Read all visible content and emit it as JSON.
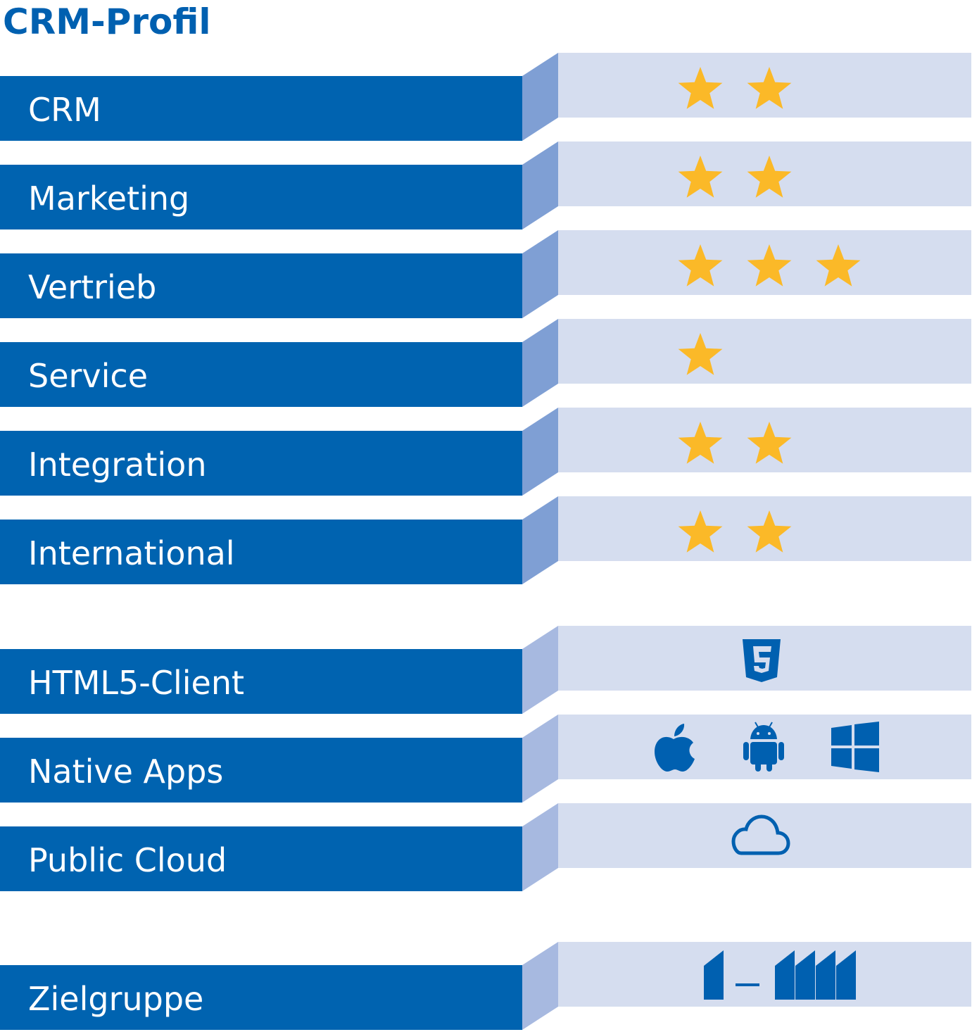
{
  "title": "CRM-Profil",
  "ratings": [
    {
      "label": "CRM",
      "stars": 2
    },
    {
      "label": "Marketing",
      "stars": 2
    },
    {
      "label": "Vertrieb",
      "stars": 3
    },
    {
      "label": "Service",
      "stars": 1
    },
    {
      "label": "Integration",
      "stars": 2
    },
    {
      "label": "International",
      "stars": 2
    }
  ],
  "platforms": [
    {
      "label": "HTML5-Client"
    },
    {
      "label": "Native Apps"
    },
    {
      "label": "Public Cloud"
    }
  ],
  "target": {
    "label": "Zielgruppe"
  }
}
